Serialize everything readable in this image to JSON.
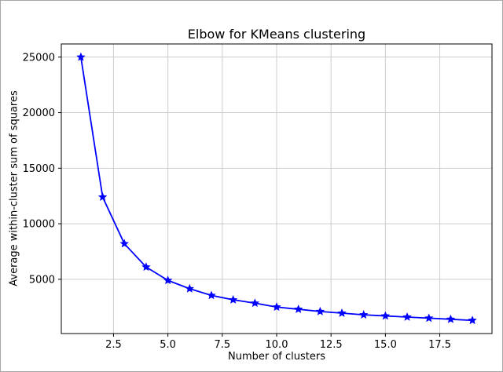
{
  "chart_data": {
    "type": "line",
    "title": "Elbow for KMeans clustering",
    "xlabel": "Number of clusters",
    "ylabel": "Average within-cluster sum of squares",
    "x": [
      1,
      2,
      3,
      4,
      5,
      6,
      7,
      8,
      9,
      10,
      11,
      12,
      13,
      14,
      15,
      16,
      17,
      18,
      19
    ],
    "y": [
      25000,
      12400,
      8200,
      6100,
      4900,
      4150,
      3550,
      3150,
      2850,
      2500,
      2300,
      2100,
      1950,
      1800,
      1700,
      1600,
      1500,
      1400,
      1300
    ],
    "xticks": [
      2.5,
      5.0,
      7.5,
      10.0,
      12.5,
      15.0,
      17.5
    ],
    "xtick_labels": [
      "2.5",
      "5.0",
      "7.5",
      "10.0",
      "12.5",
      "15.0",
      "17.5"
    ],
    "yticks": [
      5000,
      10000,
      15000,
      20000,
      25000
    ],
    "ytick_labels": [
      "5000",
      "10000",
      "15000",
      "20000",
      "25000"
    ],
    "xlim": [
      0.1,
      19.9
    ],
    "ylim": [
      115,
      26185
    ],
    "grid": true,
    "legend": "none",
    "line_color": "#0000ff",
    "marker": "star",
    "marker_color": "#0000ff",
    "grid_color": "#cccccc",
    "frame_color": "#000000",
    "background_color": "#ffffff"
  }
}
